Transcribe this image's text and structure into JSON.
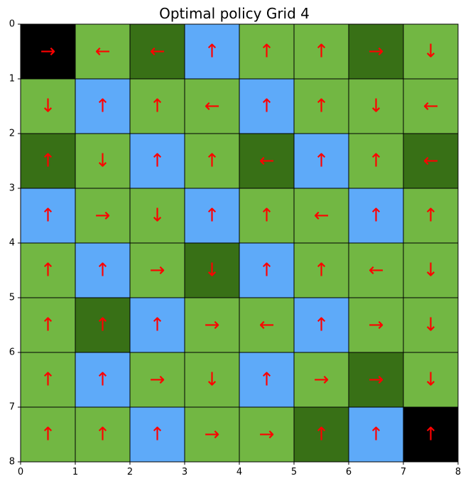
{
  "chart_data": {
    "type": "heatmap",
    "title": "Optimal policy Grid 4",
    "xlabel": "",
    "ylabel": "",
    "xlim": [
      0,
      8
    ],
    "ylim": [
      8,
      0
    ],
    "x_ticks": [
      "0",
      "1",
      "2",
      "3",
      "4",
      "5",
      "6",
      "7",
      "8"
    ],
    "y_ticks": [
      "0",
      "1",
      "2",
      "3",
      "4",
      "5",
      "6",
      "7",
      "8"
    ],
    "grid": true,
    "colors": {
      "black": "#000000",
      "light_green": "#72b743",
      "dark_green": "#387016",
      "blue": "#5eaaf9",
      "arrow": "#ff0000",
      "grid_line": "#000000"
    },
    "cell_types": [
      [
        "black",
        "light_green",
        "dark_green",
        "blue",
        "light_green",
        "light_green",
        "dark_green",
        "light_green"
      ],
      [
        "light_green",
        "blue",
        "light_green",
        "light_green",
        "blue",
        "light_green",
        "light_green",
        "light_green"
      ],
      [
        "dark_green",
        "light_green",
        "blue",
        "light_green",
        "dark_green",
        "blue",
        "light_green",
        "dark_green"
      ],
      [
        "blue",
        "light_green",
        "light_green",
        "blue",
        "light_green",
        "light_green",
        "blue",
        "light_green"
      ],
      [
        "light_green",
        "blue",
        "light_green",
        "dark_green",
        "blue",
        "light_green",
        "light_green",
        "light_green"
      ],
      [
        "light_green",
        "dark_green",
        "blue",
        "light_green",
        "light_green",
        "blue",
        "light_green",
        "light_green"
      ],
      [
        "light_green",
        "blue",
        "light_green",
        "light_green",
        "blue",
        "light_green",
        "dark_green",
        "light_green"
      ],
      [
        "light_green",
        "light_green",
        "blue",
        "light_green",
        "light_green",
        "dark_green",
        "blue",
        "black"
      ]
    ],
    "policy": [
      [
        "→",
        "←",
        "←",
        "↑",
        "↑",
        "↑",
        "→",
        "↓"
      ],
      [
        "↓",
        "↑",
        "↑",
        "←",
        "↑",
        "↑",
        "↓",
        "←"
      ],
      [
        "↑",
        "↓",
        "↑",
        "↑",
        "←",
        "↑",
        "↑",
        "←"
      ],
      [
        "↑",
        "→",
        "↓",
        "↑",
        "↑",
        "←",
        "↑",
        "↑"
      ],
      [
        "↑",
        "↑",
        "→",
        "↓",
        "↑",
        "↑",
        "←",
        "↓"
      ],
      [
        "↑",
        "↑",
        "↑",
        "→",
        "←",
        "↑",
        "→",
        "↓"
      ],
      [
        "↑",
        "↑",
        "→",
        "↓",
        "↑",
        "→",
        "→",
        "↓"
      ],
      [
        "↑",
        "↑",
        "↑",
        "→",
        "→",
        "↑",
        "↑",
        "↑"
      ]
    ]
  }
}
